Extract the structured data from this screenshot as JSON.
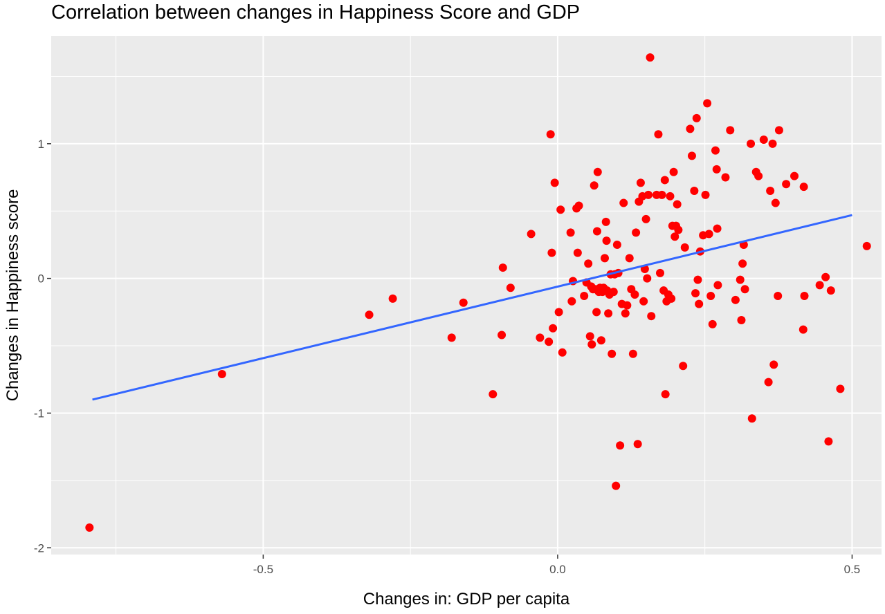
{
  "chart_data": {
    "type": "scatter",
    "title": "Correlation between changes in Happiness Score and GDP",
    "xlabel": "Changes in: GDP per capita",
    "ylabel": "Changes in Happiness score",
    "xlim": [
      -0.86,
      0.55
    ],
    "ylim": [
      -2.05,
      1.8
    ],
    "x_ticks": [
      -0.5,
      0.0,
      0.5
    ],
    "x_tick_labels": [
      "-0.5",
      "0.0",
      "0.5"
    ],
    "y_ticks": [
      -2,
      -1,
      0,
      1
    ],
    "y_tick_labels": [
      "-2",
      "-1",
      "0",
      "1"
    ],
    "grid": true,
    "panel_color": "#ebebeb",
    "grid_color": "#ffffff",
    "point_color": "#ff0000",
    "line_color": "#3366ff",
    "trend_line": {
      "x": [
        -0.79,
        0.5
      ],
      "y": [
        -0.9,
        0.47
      ]
    },
    "points": [
      {
        "x": -0.795,
        "y": -1.85
      },
      {
        "x": -0.57,
        "y": -0.71
      },
      {
        "x": -0.32,
        "y": -0.27
      },
      {
        "x": -0.28,
        "y": -0.15
      },
      {
        "x": -0.18,
        "y": -0.44
      },
      {
        "x": -0.16,
        "y": -0.18
      },
      {
        "x": -0.11,
        "y": -0.86
      },
      {
        "x": -0.095,
        "y": -0.42
      },
      {
        "x": -0.093,
        "y": 0.08
      },
      {
        "x": -0.08,
        "y": -0.07
      },
      {
        "x": -0.045,
        "y": 0.33
      },
      {
        "x": -0.03,
        "y": -0.44
      },
      {
        "x": -0.015,
        "y": -0.47
      },
      {
        "x": -0.012,
        "y": 1.07
      },
      {
        "x": -0.01,
        "y": 0.19
      },
      {
        "x": -0.008,
        "y": -0.37
      },
      {
        "x": -0.005,
        "y": 0.71
      },
      {
        "x": 0.002,
        "y": -0.25
      },
      {
        "x": 0.005,
        "y": 0.51
      },
      {
        "x": 0.008,
        "y": -0.55
      },
      {
        "x": 0.022,
        "y": 0.34
      },
      {
        "x": 0.024,
        "y": -0.17
      },
      {
        "x": 0.026,
        "y": -0.02
      },
      {
        "x": 0.032,
        "y": 0.52
      },
      {
        "x": 0.034,
        "y": 0.19
      },
      {
        "x": 0.036,
        "y": 0.54
      },
      {
        "x": 0.045,
        "y": -0.13
      },
      {
        "x": 0.049,
        "y": -0.03
      },
      {
        "x": 0.052,
        "y": 0.11
      },
      {
        "x": 0.055,
        "y": -0.43
      },
      {
        "x": 0.057,
        "y": -0.06
      },
      {
        "x": 0.058,
        "y": -0.49
      },
      {
        "x": 0.06,
        "y": -0.08
      },
      {
        "x": 0.062,
        "y": 0.69
      },
      {
        "x": 0.064,
        "y": -0.08
      },
      {
        "x": 0.066,
        "y": -0.25
      },
      {
        "x": 0.067,
        "y": 0.35
      },
      {
        "x": 0.068,
        "y": 0.79
      },
      {
        "x": 0.07,
        "y": -0.1
      },
      {
        "x": 0.072,
        "y": -0.07
      },
      {
        "x": 0.074,
        "y": -0.46
      },
      {
        "x": 0.076,
        "y": -0.1
      },
      {
        "x": 0.078,
        "y": -0.07
      },
      {
        "x": 0.08,
        "y": 0.15
      },
      {
        "x": 0.082,
        "y": 0.42
      },
      {
        "x": 0.083,
        "y": 0.28
      },
      {
        "x": 0.084,
        "y": -0.09
      },
      {
        "x": 0.086,
        "y": -0.26
      },
      {
        "x": 0.088,
        "y": -0.12
      },
      {
        "x": 0.09,
        "y": 0.03
      },
      {
        "x": 0.092,
        "y": -0.56
      },
      {
        "x": 0.095,
        "y": -0.1
      },
      {
        "x": 0.097,
        "y": 0.03
      },
      {
        "x": 0.099,
        "y": -1.54
      },
      {
        "x": 0.101,
        "y": 0.25
      },
      {
        "x": 0.103,
        "y": 0.04
      },
      {
        "x": 0.106,
        "y": -1.24
      },
      {
        "x": 0.109,
        "y": -0.19
      },
      {
        "x": 0.112,
        "y": 0.56
      },
      {
        "x": 0.115,
        "y": -0.26
      },
      {
        "x": 0.118,
        "y": -0.2
      },
      {
        "x": 0.122,
        "y": 0.15
      },
      {
        "x": 0.125,
        "y": -0.08
      },
      {
        "x": 0.128,
        "y": -0.56
      },
      {
        "x": 0.131,
        "y": -0.12
      },
      {
        "x": 0.133,
        "y": 0.34
      },
      {
        "x": 0.136,
        "y": -1.23
      },
      {
        "x": 0.138,
        "y": 0.57
      },
      {
        "x": 0.141,
        "y": 0.71
      },
      {
        "x": 0.144,
        "y": 0.61
      },
      {
        "x": 0.146,
        "y": -0.17
      },
      {
        "x": 0.148,
        "y": 0.07
      },
      {
        "x": 0.15,
        "y": 0.44
      },
      {
        "x": 0.152,
        "y": 0.0
      },
      {
        "x": 0.154,
        "y": 0.62
      },
      {
        "x": 0.157,
        "y": 1.64
      },
      {
        "x": 0.159,
        "y": -0.28
      },
      {
        "x": 0.168,
        "y": 0.62
      },
      {
        "x": 0.171,
        "y": 1.07
      },
      {
        "x": 0.174,
        "y": 0.04
      },
      {
        "x": 0.177,
        "y": 0.62
      },
      {
        "x": 0.18,
        "y": -0.09
      },
      {
        "x": 0.182,
        "y": 0.73
      },
      {
        "x": 0.183,
        "y": -0.86
      },
      {
        "x": 0.185,
        "y": -0.17
      },
      {
        "x": 0.188,
        "y": -0.12
      },
      {
        "x": 0.191,
        "y": 0.61
      },
      {
        "x": 0.193,
        "y": -0.15
      },
      {
        "x": 0.195,
        "y": 0.39
      },
      {
        "x": 0.197,
        "y": 0.79
      },
      {
        "x": 0.199,
        "y": 0.31
      },
      {
        "x": 0.201,
        "y": 0.39
      },
      {
        "x": 0.203,
        "y": 0.55
      },
      {
        "x": 0.205,
        "y": 0.36
      },
      {
        "x": 0.213,
        "y": -0.65
      },
      {
        "x": 0.216,
        "y": 0.23
      },
      {
        "x": 0.225,
        "y": 1.11
      },
      {
        "x": 0.228,
        "y": 0.91
      },
      {
        "x": 0.232,
        "y": 0.65
      },
      {
        "x": 0.234,
        "y": -0.11
      },
      {
        "x": 0.236,
        "y": 1.19
      },
      {
        "x": 0.238,
        "y": -0.01
      },
      {
        "x": 0.24,
        "y": -0.19
      },
      {
        "x": 0.242,
        "y": 0.2
      },
      {
        "x": 0.247,
        "y": 0.32
      },
      {
        "x": 0.251,
        "y": 0.62
      },
      {
        "x": 0.254,
        "y": 1.3
      },
      {
        "x": 0.257,
        "y": 0.33
      },
      {
        "x": 0.26,
        "y": -0.13
      },
      {
        "x": 0.263,
        "y": -0.34
      },
      {
        "x": 0.268,
        "y": 0.95
      },
      {
        "x": 0.27,
        "y": 0.81
      },
      {
        "x": 0.271,
        "y": 0.37
      },
      {
        "x": 0.272,
        "y": -0.05
      },
      {
        "x": 0.285,
        "y": 0.75
      },
      {
        "x": 0.293,
        "y": 1.1
      },
      {
        "x": 0.302,
        "y": -0.16
      },
      {
        "x": 0.31,
        "y": -0.01
      },
      {
        "x": 0.312,
        "y": -0.31
      },
      {
        "x": 0.314,
        "y": 0.11
      },
      {
        "x": 0.316,
        "y": 0.25
      },
      {
        "x": 0.318,
        "y": -0.08
      },
      {
        "x": 0.328,
        "y": 1.0
      },
      {
        "x": 0.33,
        "y": -1.04
      },
      {
        "x": 0.337,
        "y": 0.79
      },
      {
        "x": 0.341,
        "y": 0.76
      },
      {
        "x": 0.35,
        "y": 1.03
      },
      {
        "x": 0.358,
        "y": -0.77
      },
      {
        "x": 0.361,
        "y": 0.65
      },
      {
        "x": 0.365,
        "y": 1.0
      },
      {
        "x": 0.367,
        "y": -0.64
      },
      {
        "x": 0.37,
        "y": 0.56
      },
      {
        "x": 0.374,
        "y": -0.13
      },
      {
        "x": 0.376,
        "y": 1.1
      },
      {
        "x": 0.388,
        "y": 0.7
      },
      {
        "x": 0.402,
        "y": 0.76
      },
      {
        "x": 0.417,
        "y": -0.38
      },
      {
        "x": 0.418,
        "y": 0.68
      },
      {
        "x": 0.419,
        "y": -0.13
      },
      {
        "x": 0.445,
        "y": -0.05
      },
      {
        "x": 0.455,
        "y": 0.01
      },
      {
        "x": 0.46,
        "y": -1.21
      },
      {
        "x": 0.464,
        "y": -0.09
      },
      {
        "x": 0.48,
        "y": -0.82
      },
      {
        "x": 0.525,
        "y": 0.24
      }
    ]
  }
}
